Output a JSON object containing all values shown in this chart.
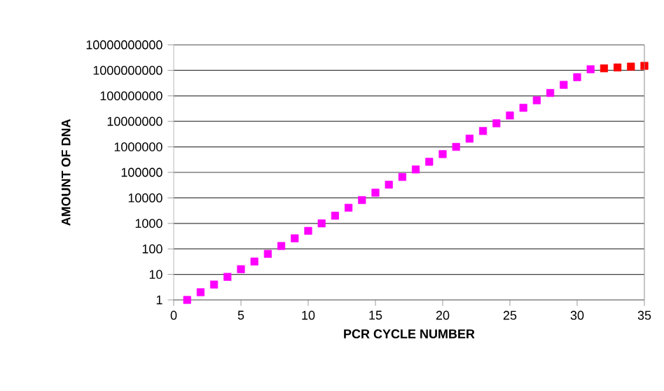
{
  "chart_data": {
    "type": "scatter",
    "xlabel": "PCR CYCLE NUMBER",
    "ylabel": "AMOUNT OF DNA",
    "log": "y",
    "grid": "y",
    "marker": "square",
    "xlim": [
      0,
      35
    ],
    "xticks": [
      0,
      5,
      10,
      15,
      20,
      25,
      30,
      35
    ],
    "ylim": [
      1,
      10000000000
    ],
    "yticks": [
      1,
      10,
      100,
      1000,
      10000,
      100000,
      1000000,
      10000000,
      100000000,
      1000000000,
      10000000000
    ],
    "series": [
      {
        "color": "#ff00ff",
        "x": [
          1,
          2,
          3,
          4,
          5,
          6,
          7,
          8,
          9,
          10,
          11,
          12,
          13,
          14,
          15,
          16,
          17,
          18,
          19,
          20,
          21,
          22,
          23,
          24,
          25,
          26,
          27,
          28,
          29,
          30,
          31
        ],
        "values": [
          1,
          2,
          4,
          8,
          16,
          32,
          64,
          130,
          260,
          510,
          1000,
          2000,
          4100,
          8200,
          16000,
          33000,
          66000,
          130000,
          260000,
          520000,
          1000000,
          2100000,
          4200000,
          8400000,
          17000000,
          34000000,
          67000000,
          130000000,
          270000000,
          540000000,
          1100000000
        ]
      },
      {
        "color": "#ff0000",
        "x": [
          32,
          33,
          34,
          35
        ],
        "values": [
          1200000000,
          1300000000,
          1400000000,
          1500000000
        ]
      }
    ]
  }
}
